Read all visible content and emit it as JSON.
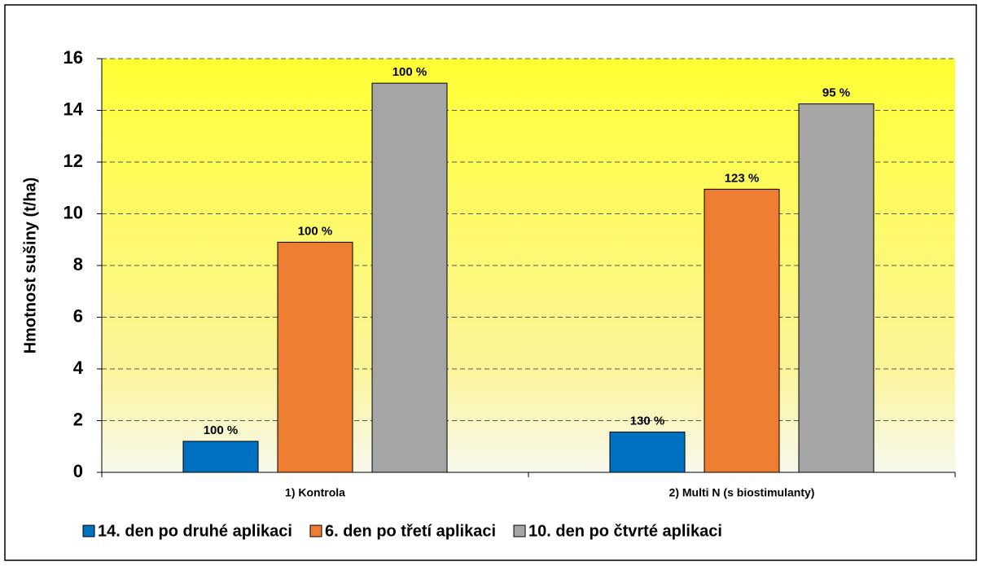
{
  "chart_data": {
    "type": "bar",
    "y_label": "Hmotnost sušiny (t/ha)",
    "categories": [
      "1) Kontrola",
      "2) Multi N (s biostimulanty)"
    ],
    "series": [
      {
        "name": "14. den po druhé aplikaci",
        "color": "#0070c0",
        "values": [
          1.2,
          1.56
        ],
        "annotations": [
          "100 %",
          "130 %"
        ]
      },
      {
        "name": "6. den po třetí aplikaci",
        "color": "#ed7d31",
        "values": [
          8.9,
          10.95
        ],
        "annotations": [
          "100 %",
          "123 %"
        ]
      },
      {
        "name": "10. den po čtvrté aplikaci",
        "color": "#a5a5a5",
        "values": [
          15.05,
          14.25
        ],
        "annotations": [
          "100 %",
          "95 %"
        ]
      }
    ],
    "ylim": [
      0,
      16
    ],
    "yticks": [
      0,
      2,
      4,
      6,
      8,
      10,
      12,
      14,
      16
    ],
    "grid": true
  }
}
